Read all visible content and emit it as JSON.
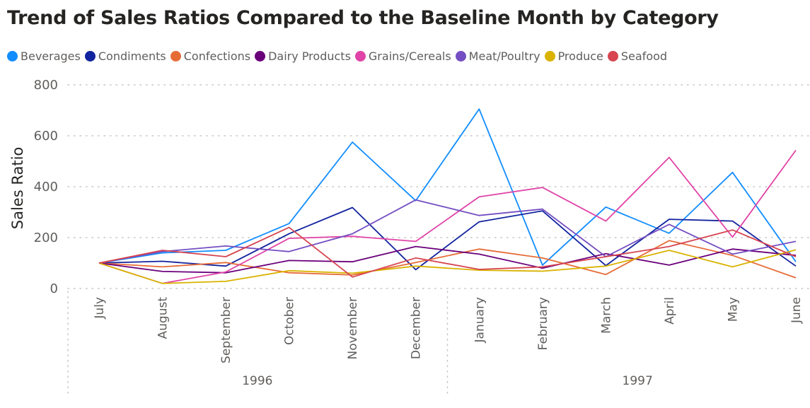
{
  "chart_data": {
    "type": "line",
    "title": "Trend of Sales Ratios Compared to the Baseline Month by Category",
    "ylabel": "Sales Ratio",
    "xlabel": "",
    "ylim": [
      0,
      800
    ],
    "yticks": [
      0,
      200,
      400,
      600,
      800
    ],
    "grid": true,
    "legend_position": "top-left",
    "categories": [
      "July",
      "August",
      "September",
      "October",
      "November",
      "December",
      "January",
      "February",
      "March",
      "April",
      "May",
      "June"
    ],
    "year_groups": [
      {
        "label": "1996",
        "months": 6
      },
      {
        "label": "1997",
        "months": 6
      }
    ],
    "series": [
      {
        "name": "Beverages",
        "color": "#118DFF",
        "values": [
          100,
          140,
          150,
          255,
          575,
          345,
          705,
          92,
          320,
          217,
          456,
          105
        ]
      },
      {
        "name": "Condiments",
        "color": "#12239E",
        "values": [
          100,
          107,
          88,
          215,
          318,
          74,
          262,
          305,
          90,
          272,
          265,
          88
        ]
      },
      {
        "name": "Confections",
        "color": "#E66C37",
        "values": [
          100,
          85,
          102,
          62,
          53,
          102,
          155,
          120,
          55,
          188,
          130,
          42
        ]
      },
      {
        "name": "Dairy Products",
        "color": "#6B007B",
        "values": [
          100,
          67,
          62,
          110,
          105,
          165,
          135,
          80,
          137,
          92,
          155,
          130
        ]
      },
      {
        "name": "Grains/Cereals",
        "color": "#E044A7",
        "values": [
          100,
          20,
          65,
          197,
          205,
          185,
          360,
          397,
          265,
          515,
          202,
          543
        ]
      },
      {
        "name": "Meat/Poultry",
        "color": "#744EC2",
        "values": [
          100,
          145,
          167,
          145,
          215,
          348,
          287,
          312,
          125,
          252,
          135,
          185
        ]
      },
      {
        "name": "Produce",
        "color": "#D9B300",
        "values": [
          100,
          20,
          28,
          70,
          60,
          88,
          72,
          68,
          88,
          150,
          85,
          152
        ]
      },
      {
        "name": "Seafood",
        "color": "#D64550",
        "values": [
          100,
          150,
          125,
          240,
          45,
          120,
          75,
          85,
          125,
          165,
          230,
          125
        ]
      }
    ]
  }
}
